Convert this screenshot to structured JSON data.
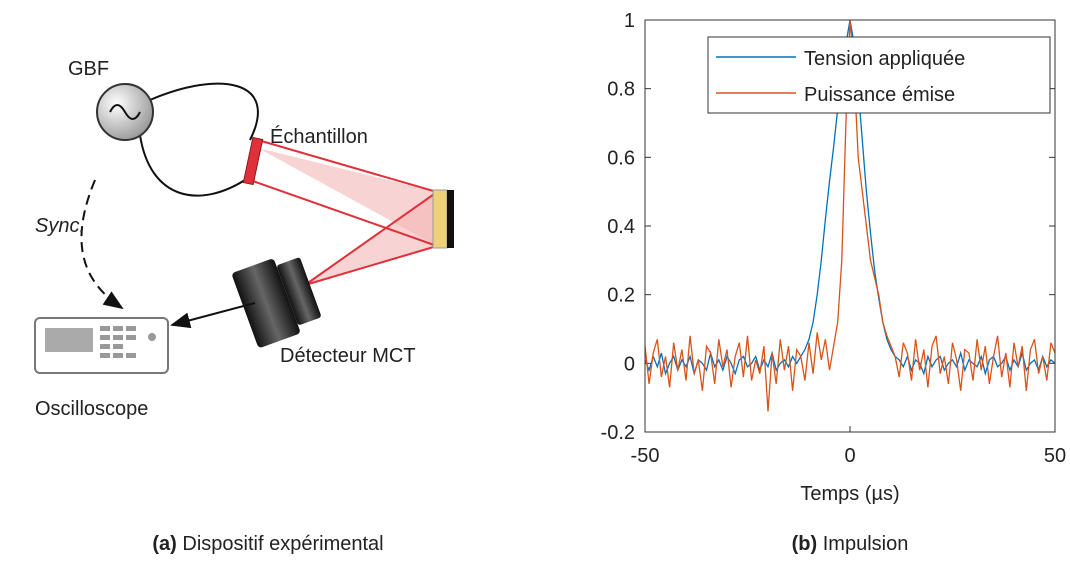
{
  "diagram": {
    "gbf": "GBF",
    "sample": "Échantillon",
    "sync": "Sync.",
    "detector": "Détecteur MCT",
    "oscilloscope": "Oscilloscope",
    "caption_label": "(a)",
    "caption": "Dispositif expérimental"
  },
  "chart_data": {
    "type": "line",
    "caption_label": "(b)",
    "caption": "Impulsion",
    "xlabel": "Temps (µs)",
    "xlim": [
      -50,
      50
    ],
    "ylim": [
      -0.2,
      1
    ],
    "xticks": [
      -50,
      0,
      50
    ],
    "yticks": [
      -0.2,
      0,
      0.2,
      0.4,
      0.6,
      0.8,
      1
    ],
    "legend": "upper right",
    "x": [
      -50,
      -49,
      -48,
      -47,
      -46,
      -45,
      -44,
      -43,
      -42,
      -41,
      -40,
      -39,
      -38,
      -37,
      -36,
      -35,
      -34,
      -33,
      -32,
      -31,
      -30,
      -29,
      -28,
      -27,
      -26,
      -25,
      -24,
      -23,
      -22,
      -21,
      -20,
      -19,
      -18,
      -17,
      -16,
      -15,
      -14,
      -13,
      -12,
      -11,
      -10,
      -9,
      -8,
      -7,
      -6,
      -5,
      -4,
      -3,
      -2,
      -1,
      0,
      1,
      2,
      3,
      4,
      5,
      6,
      7,
      8,
      9,
      10,
      11,
      12,
      13,
      14,
      15,
      16,
      17,
      18,
      19,
      20,
      21,
      22,
      23,
      24,
      25,
      26,
      27,
      28,
      29,
      30,
      31,
      32,
      33,
      34,
      35,
      36,
      37,
      38,
      39,
      40,
      41,
      42,
      43,
      44,
      45,
      46,
      47,
      48,
      49,
      50
    ],
    "series": [
      {
        "name": "Tension appliquée",
        "color": "#0072bd",
        "values": [
          0.01,
          -0.02,
          0.02,
          -0.01,
          0.03,
          -0.03,
          0,
          0.02,
          -0.02,
          0.01,
          -0.01,
          0.02,
          -0.03,
          0.01,
          0,
          -0.02,
          0.03,
          -0.01,
          0.01,
          -0.02,
          0.02,
          0,
          -0.03,
          0.01,
          0.02,
          -0.01,
          0,
          0.02,
          -0.02,
          0.01,
          -0.01,
          0.03,
          -0.02,
          0,
          0.01,
          -0.01,
          0.02,
          0,
          0.02,
          0.04,
          0.07,
          0.12,
          0.2,
          0.3,
          0.42,
          0.53,
          0.63,
          0.74,
          0.84,
          0.93,
          1,
          0.93,
          0.8,
          0.65,
          0.5,
          0.38,
          0.27,
          0.19,
          0.12,
          0.07,
          0.04,
          0.02,
          0.01,
          -0.01,
          0.02,
          -0.02,
          0.01,
          0,
          -0.03,
          0.02,
          -0.01,
          0.01,
          0.02,
          -0.02,
          0,
          0.01,
          -0.01,
          0.03,
          -0.02,
          0.01,
          0,
          -0.01,
          0.02,
          -0.03,
          0.01,
          0.02,
          -0.01,
          0,
          0.02,
          -0.02,
          0.01,
          -0.01,
          0.03,
          -0.02,
          0,
          0.01,
          -0.02,
          0.02,
          -0.01,
          0.01,
          0
        ]
      },
      {
        "name": "Puissance émise",
        "color": "#d95319",
        "values": [
          0.05,
          -0.06,
          0.03,
          0.07,
          -0.04,
          0.02,
          -0.07,
          0.06,
          -0.02,
          0.04,
          -0.05,
          0.08,
          -0.03,
          0.01,
          -0.08,
          0.05,
          0.03,
          -0.06,
          0.07,
          -0.01,
          0.04,
          -0.07,
          0.02,
          0.06,
          -0.04,
          0.08,
          -0.05,
          0.01,
          -0.03,
          0.05,
          -0.14,
          0.03,
          -0.06,
          0.07,
          -0.02,
          0.05,
          -0.08,
          0.04,
          0.02,
          -0.05,
          0.06,
          -0.03,
          0.09,
          0.01,
          0.07,
          -0.02,
          0.05,
          0.12,
          0.3,
          0.7,
          1,
          0.85,
          0.6,
          0.5,
          0.4,
          0.3,
          0.25,
          0.2,
          0.12,
          0.08,
          0.05,
          0.02,
          -0.04,
          0.06,
          0.03,
          -0.05,
          0.07,
          -0.02,
          0.04,
          -0.07,
          0.05,
          0.08,
          -0.03,
          0.02,
          -0.06,
          0.06,
          0.01,
          -0.08,
          0.04,
          0.03,
          -0.05,
          0.07,
          -0.02,
          0.05,
          -0.06,
          0.02,
          0.08,
          -0.04,
          0.03,
          -0.07,
          0.06,
          -0.01,
          0.05,
          -0.08,
          0.04,
          0.07,
          -0.03,
          0.02,
          -0.05,
          0.06,
          0.03
        ]
      }
    ]
  }
}
